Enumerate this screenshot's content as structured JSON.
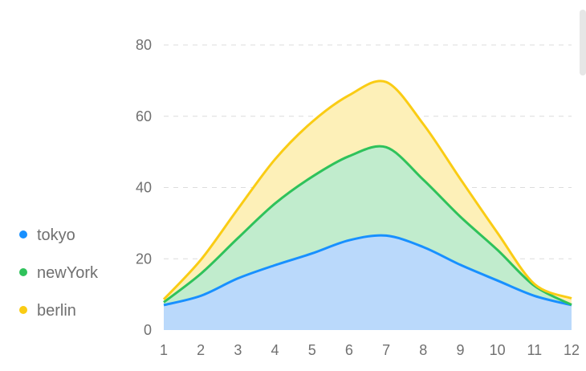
{
  "chart_data": {
    "type": "area",
    "stacked": true,
    "curve": "smooth",
    "x": [
      "1",
      "2",
      "3",
      "4",
      "5",
      "6",
      "7",
      "8",
      "9",
      "10",
      "11",
      "12"
    ],
    "ylim": [
      0,
      80
    ],
    "yticks": [
      0,
      20,
      40,
      60,
      80
    ],
    "grid": true,
    "legend_position": "left",
    "series": [
      {
        "name": "tokyo",
        "color": "#1890ff",
        "fill": "#bad9fb",
        "values": [
          7,
          9.6,
          14.5,
          18.2,
          21.5,
          25.2,
          26.5,
          23.3,
          18.3,
          13.9,
          9.6,
          7
        ]
      },
      {
        "name": "newYork",
        "color": "#2fc25b",
        "fill": "#c1eccd",
        "values": [
          0.8,
          6.2,
          11.3,
          17.3,
          21.5,
          23.6,
          24.8,
          18.9,
          13.5,
          8.6,
          2.8,
          0.1
        ]
      },
      {
        "name": "berlin",
        "color": "#facc14",
        "fill": "#fdf0b8",
        "values": [
          0.8,
          3.9,
          8.2,
          12.4,
          15.4,
          17.1,
          18.3,
          15.6,
          10.6,
          4.8,
          0.5,
          1.8
        ]
      }
    ]
  }
}
